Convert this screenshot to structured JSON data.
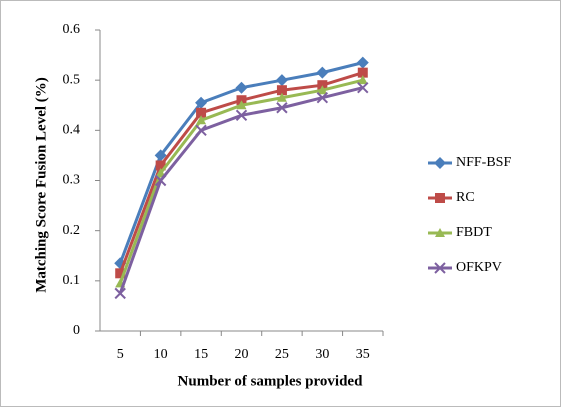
{
  "chart_data": {
    "type": "line",
    "x_label": "Number of samples provided",
    "y_label": "Matching Score Fusion Level (%)",
    "categories": [
      "5",
      "10",
      "15",
      "20",
      "25",
      "30",
      "35"
    ],
    "series": [
      {
        "name": "NFF-BSF",
        "color": "#4a7ebb",
        "marker": "diamond",
        "values": [
          0.135,
          0.35,
          0.455,
          0.485,
          0.5,
          0.515,
          0.535
        ]
      },
      {
        "name": "RC",
        "color": "#be4b48",
        "marker": "square",
        "values": [
          0.115,
          0.33,
          0.435,
          0.46,
          0.48,
          0.49,
          0.515
        ]
      },
      {
        "name": "FBDT",
        "color": "#98b954",
        "marker": "triangle",
        "values": [
          0.095,
          0.315,
          0.42,
          0.45,
          0.465,
          0.48,
          0.5
        ]
      },
      {
        "name": "OFKPV",
        "color": "#7d60a0",
        "marker": "x",
        "values": [
          0.075,
          0.3,
          0.4,
          0.43,
          0.445,
          0.465,
          0.485
        ]
      }
    ],
    "ylim": [
      0,
      0.6
    ],
    "yticks": [
      0,
      0.1,
      0.2,
      0.3,
      0.4,
      0.5,
      0.6
    ],
    "grid": false,
    "legend": "right"
  }
}
